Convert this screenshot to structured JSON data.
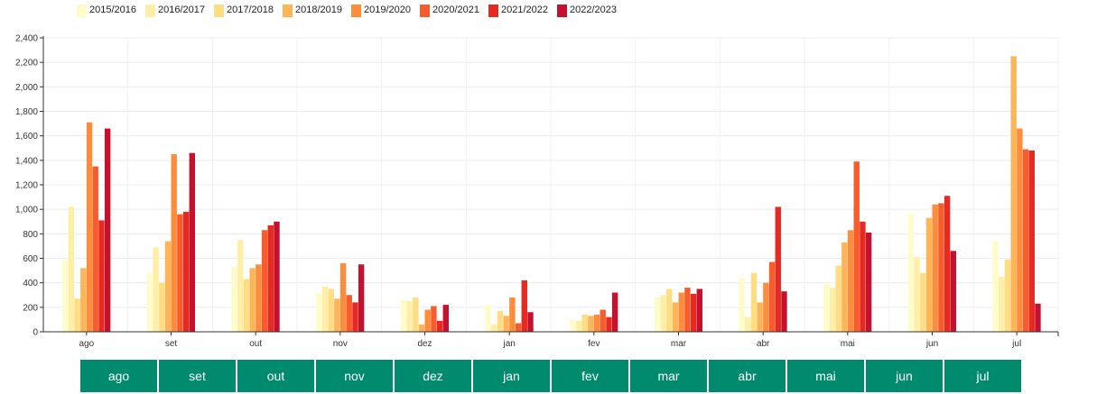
{
  "chart_data": {
    "type": "bar",
    "categories": [
      "ago",
      "set",
      "out",
      "nov",
      "dez",
      "jan",
      "fev",
      "mar",
      "abr",
      "mai",
      "jun",
      "jul"
    ],
    "ylim": [
      0,
      2400
    ],
    "yticks": [
      0,
      200,
      400,
      600,
      800,
      1000,
      1200,
      1400,
      1600,
      1800,
      2000,
      2200,
      2400
    ],
    "ytick_labels": [
      "0",
      "200",
      "400",
      "600",
      "800",
      "1,000",
      "1,200",
      "1,400",
      "1,600",
      "1,800",
      "2,000",
      "2,200",
      "2,400"
    ],
    "grid": true,
    "legend_position": "top-left",
    "series": [
      {
        "name": "2015/2016",
        "color": "#fffccc",
        "values": [
          590,
          480,
          530,
          310,
          260,
          220,
          100,
          280,
          440,
          400,
          960,
          740
        ]
      },
      {
        "name": "2016/2017",
        "color": "#ffeea6",
        "values": [
          1020,
          690,
          750,
          370,
          250,
          60,
          90,
          300,
          120,
          360,
          610,
          450
        ]
      },
      {
        "name": "2017/2018",
        "color": "#fedd83",
        "values": [
          270,
          400,
          430,
          350,
          280,
          170,
          140,
          350,
          480,
          540,
          480,
          590
        ]
      },
      {
        "name": "2018/2019",
        "color": "#feb558",
        "values": [
          520,
          740,
          520,
          270,
          60,
          130,
          130,
          240,
          240,
          730,
          930,
          2250
        ]
      },
      {
        "name": "2019/2020",
        "color": "#fd8d3c",
        "values": [
          1710,
          1450,
          550,
          560,
          180,
          280,
          140,
          320,
          400,
          830,
          1040,
          1660
        ]
      },
      {
        "name": "2020/2021",
        "color": "#f85b2c",
        "values": [
          1350,
          960,
          830,
          300,
          210,
          70,
          180,
          360,
          570,
          1390,
          1050,
          1490
        ]
      },
      {
        "name": "2021/2022",
        "color": "#e62a22",
        "values": [
          910,
          980,
          870,
          240,
          90,
          420,
          120,
          310,
          1020,
          900,
          1110,
          1480
        ]
      },
      {
        "name": "2022/2023",
        "color": "#c3112e",
        "values": [
          1660,
          1460,
          900,
          550,
          220,
          160,
          320,
          350,
          330,
          810,
          660,
          230
        ]
      }
    ]
  },
  "month_buttons": [
    "ago",
    "set",
    "out",
    "nov",
    "dez",
    "jan",
    "fev",
    "mar",
    "abr",
    "mai",
    "jun",
    "jul"
  ]
}
